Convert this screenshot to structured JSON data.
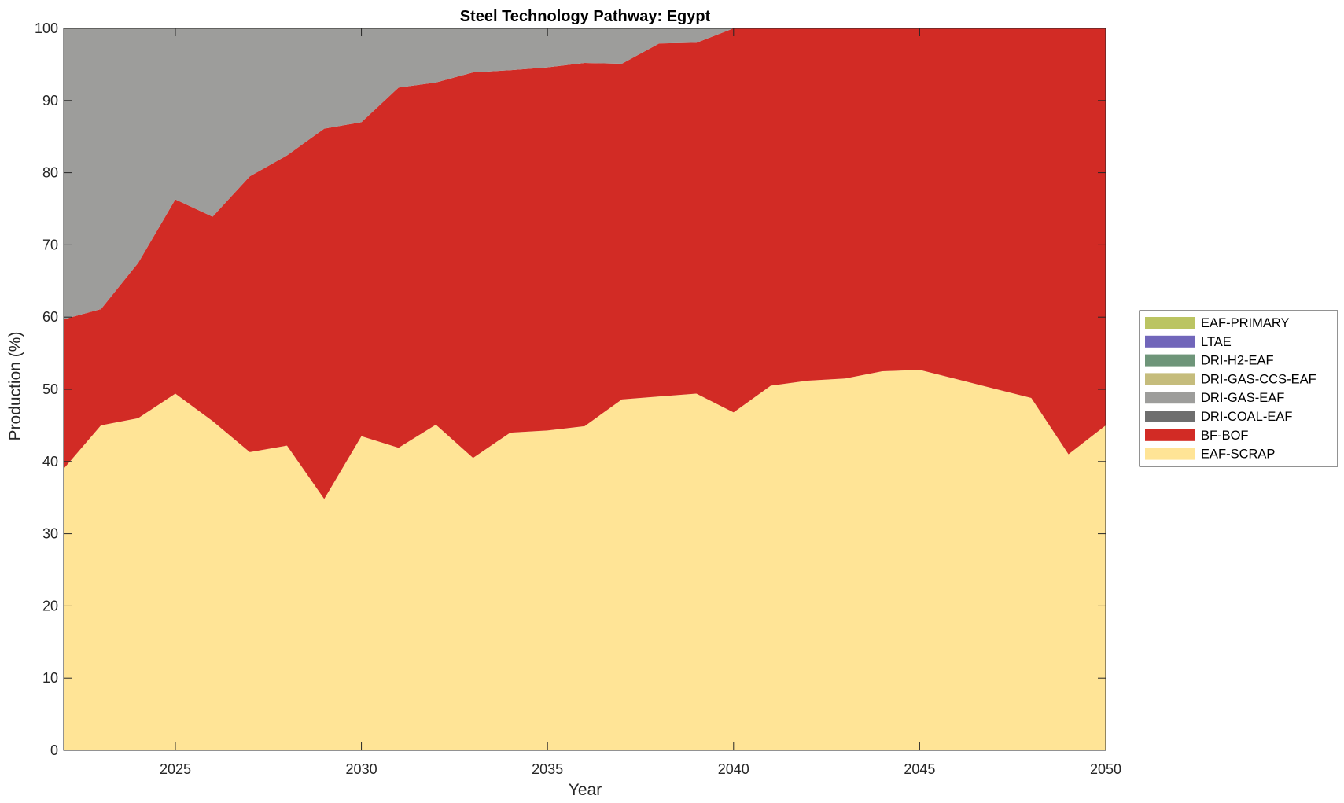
{
  "chart_data": {
    "type": "area",
    "stacked": true,
    "title": "Steel Technology Pathway: Egypt",
    "xlabel": "Year",
    "ylabel": "Production (%)",
    "xlim": [
      2022,
      2050
    ],
    "ylim": [
      0,
      100
    ],
    "xticks": [
      2025,
      2030,
      2035,
      2040,
      2045,
      2050
    ],
    "yticks": [
      0,
      10,
      20,
      30,
      40,
      50,
      60,
      70,
      80,
      90,
      100
    ],
    "grid": false,
    "legend_position": "right",
    "x": [
      2022,
      2023,
      2024,
      2025,
      2026,
      2027,
      2028,
      2029,
      2030,
      2031,
      2032,
      2033,
      2034,
      2035,
      2036,
      2037,
      2038,
      2039,
      2040,
      2041,
      2042,
      2043,
      2044,
      2045,
      2046,
      2047,
      2048,
      2049,
      2050
    ],
    "series": [
      {
        "name": "EAF-SCRAP",
        "color": "#FFE496",
        "values": [
          39.0,
          45.0,
          46.0,
          49.4,
          45.6,
          41.3,
          42.2,
          34.8,
          43.5,
          41.9,
          45.1,
          40.5,
          44.0,
          44.3,
          44.9,
          48.6,
          49.0,
          49.4,
          46.8,
          50.5,
          51.2,
          51.5,
          52.5,
          52.7,
          51.4,
          50.1,
          48.8,
          41.0,
          45.0
        ]
      },
      {
        "name": "BF-BOF",
        "color": "#D22B25",
        "values": [
          20.7,
          16.1,
          21.5,
          26.9,
          28.3,
          38.2,
          40.2,
          51.3,
          43.5,
          49.9,
          47.4,
          53.4,
          50.2,
          50.3,
          50.3,
          46.5,
          48.9,
          48.6,
          53.2,
          49.5,
          48.8,
          48.5,
          47.5,
          47.3,
          48.6,
          49.9,
          51.2,
          59.0,
          55.0
        ]
      },
      {
        "name": "DRI-COAL-EAF",
        "color": "#6E6E6E",
        "values": [
          0,
          0,
          0,
          0,
          0,
          0,
          0,
          0,
          0,
          0,
          0,
          0,
          0,
          0,
          0,
          0,
          0,
          0,
          0,
          0,
          0,
          0,
          0,
          0,
          0,
          0,
          0,
          0,
          0
        ]
      },
      {
        "name": "DRI-GAS-EAF",
        "color": "#9D9D9B",
        "values": [
          40.3,
          38.9,
          32.5,
          23.7,
          26.1,
          20.5,
          17.6,
          13.9,
          13.0,
          8.2,
          7.5,
          6.1,
          5.8,
          5.4,
          4.8,
          4.9,
          2.1,
          2.0,
          0,
          0,
          0,
          0,
          0,
          0,
          0,
          0,
          0,
          0,
          0
        ]
      },
      {
        "name": "DRI-GAS-CCS-EAF",
        "color": "#C5BC7C",
        "values": [
          0,
          0,
          0,
          0,
          0,
          0,
          0,
          0,
          0,
          0,
          0,
          0,
          0,
          0,
          0,
          0,
          0,
          0,
          0,
          0,
          0,
          0,
          0,
          0,
          0,
          0,
          0,
          0,
          0
        ]
      },
      {
        "name": "DRI-H2-EAF",
        "color": "#6E9579",
        "values": [
          0,
          0,
          0,
          0,
          0,
          0,
          0,
          0,
          0,
          0,
          0,
          0,
          0,
          0,
          0,
          0,
          0,
          0,
          0,
          0,
          0,
          0,
          0,
          0,
          0,
          0,
          0,
          0,
          0
        ]
      },
      {
        "name": "LTAE",
        "color": "#7166BA",
        "values": [
          0,
          0,
          0,
          0,
          0,
          0,
          0,
          0,
          0,
          0,
          0,
          0,
          0,
          0,
          0,
          0,
          0,
          0,
          0,
          0,
          0,
          0,
          0,
          0,
          0,
          0,
          0,
          0,
          0
        ]
      },
      {
        "name": "EAF-PRIMARY",
        "color": "#BBC462",
        "values": [
          0,
          0,
          0,
          0,
          0,
          0,
          0,
          0,
          0,
          0,
          0,
          0,
          0,
          0,
          0,
          0,
          0,
          0,
          0,
          0,
          0,
          0,
          0,
          0,
          0,
          0,
          0,
          0,
          0
        ]
      }
    ],
    "legend_order": [
      "EAF-PRIMARY",
      "LTAE",
      "DRI-H2-EAF",
      "DRI-GAS-CCS-EAF",
      "DRI-GAS-EAF",
      "DRI-COAL-EAF",
      "BF-BOF",
      "EAF-SCRAP"
    ]
  }
}
